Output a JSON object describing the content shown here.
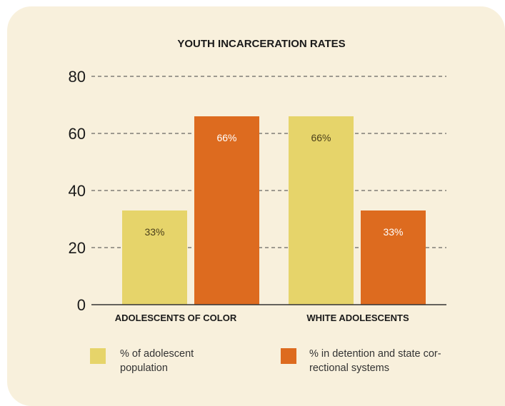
{
  "chart_data": {
    "type": "bar",
    "title": "YOUTH INCARCERATION RATES",
    "categories": [
      "ADOLESCENTS OF COLOR",
      "WHITE ADOLESCENTS"
    ],
    "series": [
      {
        "name": "% of adolescent population",
        "color": "#e6d46a",
        "label_color": "#4a3f1a",
        "values": [
          33,
          66
        ],
        "labels": [
          "33%",
          "66%"
        ]
      },
      {
        "name": "% in detention and state correctional systems",
        "color": "#dd6b1f",
        "label_color": "#ffffff",
        "values": [
          66,
          33
        ],
        "labels": [
          "66%",
          "33%"
        ]
      }
    ],
    "ylim": [
      0,
      80
    ],
    "yticks": [
      "0",
      "20",
      "40",
      "60",
      "80"
    ],
    "grid": true
  },
  "legend": {
    "item1": {
      "line1": "% of adolescent",
      "line2": "population"
    },
    "item2": {
      "line1": "% in detention and state cor-",
      "line2": "rectional systems"
    }
  }
}
